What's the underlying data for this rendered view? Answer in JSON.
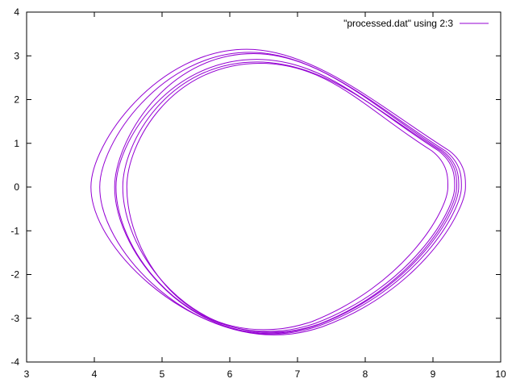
{
  "chart_data": {
    "type": "line",
    "title": "",
    "xlabel": "",
    "ylabel": "",
    "xlim": [
      3,
      10
    ],
    "ylim": [
      -4,
      4
    ],
    "x_ticks": [
      "3",
      "4",
      "5",
      "6",
      "7",
      "8",
      "9",
      "10"
    ],
    "y_ticks": [
      "-4",
      "-3",
      "-2",
      "-1",
      "0",
      "1",
      "2",
      "3",
      "4"
    ],
    "grid": false,
    "legend_position": "top-right",
    "series": [
      {
        "name": "\"processed.dat\" using 2:3",
        "color": "#9400d3",
        "loops": [
          {
            "x_min": 3.95,
            "x_max": 9.48,
            "y_min": -3.38,
            "y_max": 3.15,
            "x_at_y_max": 6.25,
            "x_at_y_min": 6.65
          },
          {
            "x_min": 4.08,
            "x_max": 9.42,
            "y_min": -3.36,
            "y_max": 3.08,
            "x_at_y_max": 6.3,
            "x_at_y_min": 6.6
          },
          {
            "x_min": 4.3,
            "x_max": 9.38,
            "y_min": -3.34,
            "y_max": 3.05,
            "x_at_y_max": 6.35,
            "x_at_y_min": 6.58
          },
          {
            "x_min": 4.32,
            "x_max": 9.32,
            "y_min": -3.3,
            "y_max": 2.92,
            "x_at_y_max": 6.4,
            "x_at_y_min": 6.55
          },
          {
            "x_min": 4.42,
            "x_max": 9.35,
            "y_min": -3.32,
            "y_max": 2.86,
            "x_at_y_max": 6.4,
            "x_at_y_min": 6.6
          },
          {
            "x_min": 4.48,
            "x_max": 9.22,
            "y_min": -3.26,
            "y_max": 2.83,
            "x_at_y_max": 6.45,
            "x_at_y_min": 6.5
          }
        ]
      }
    ]
  }
}
